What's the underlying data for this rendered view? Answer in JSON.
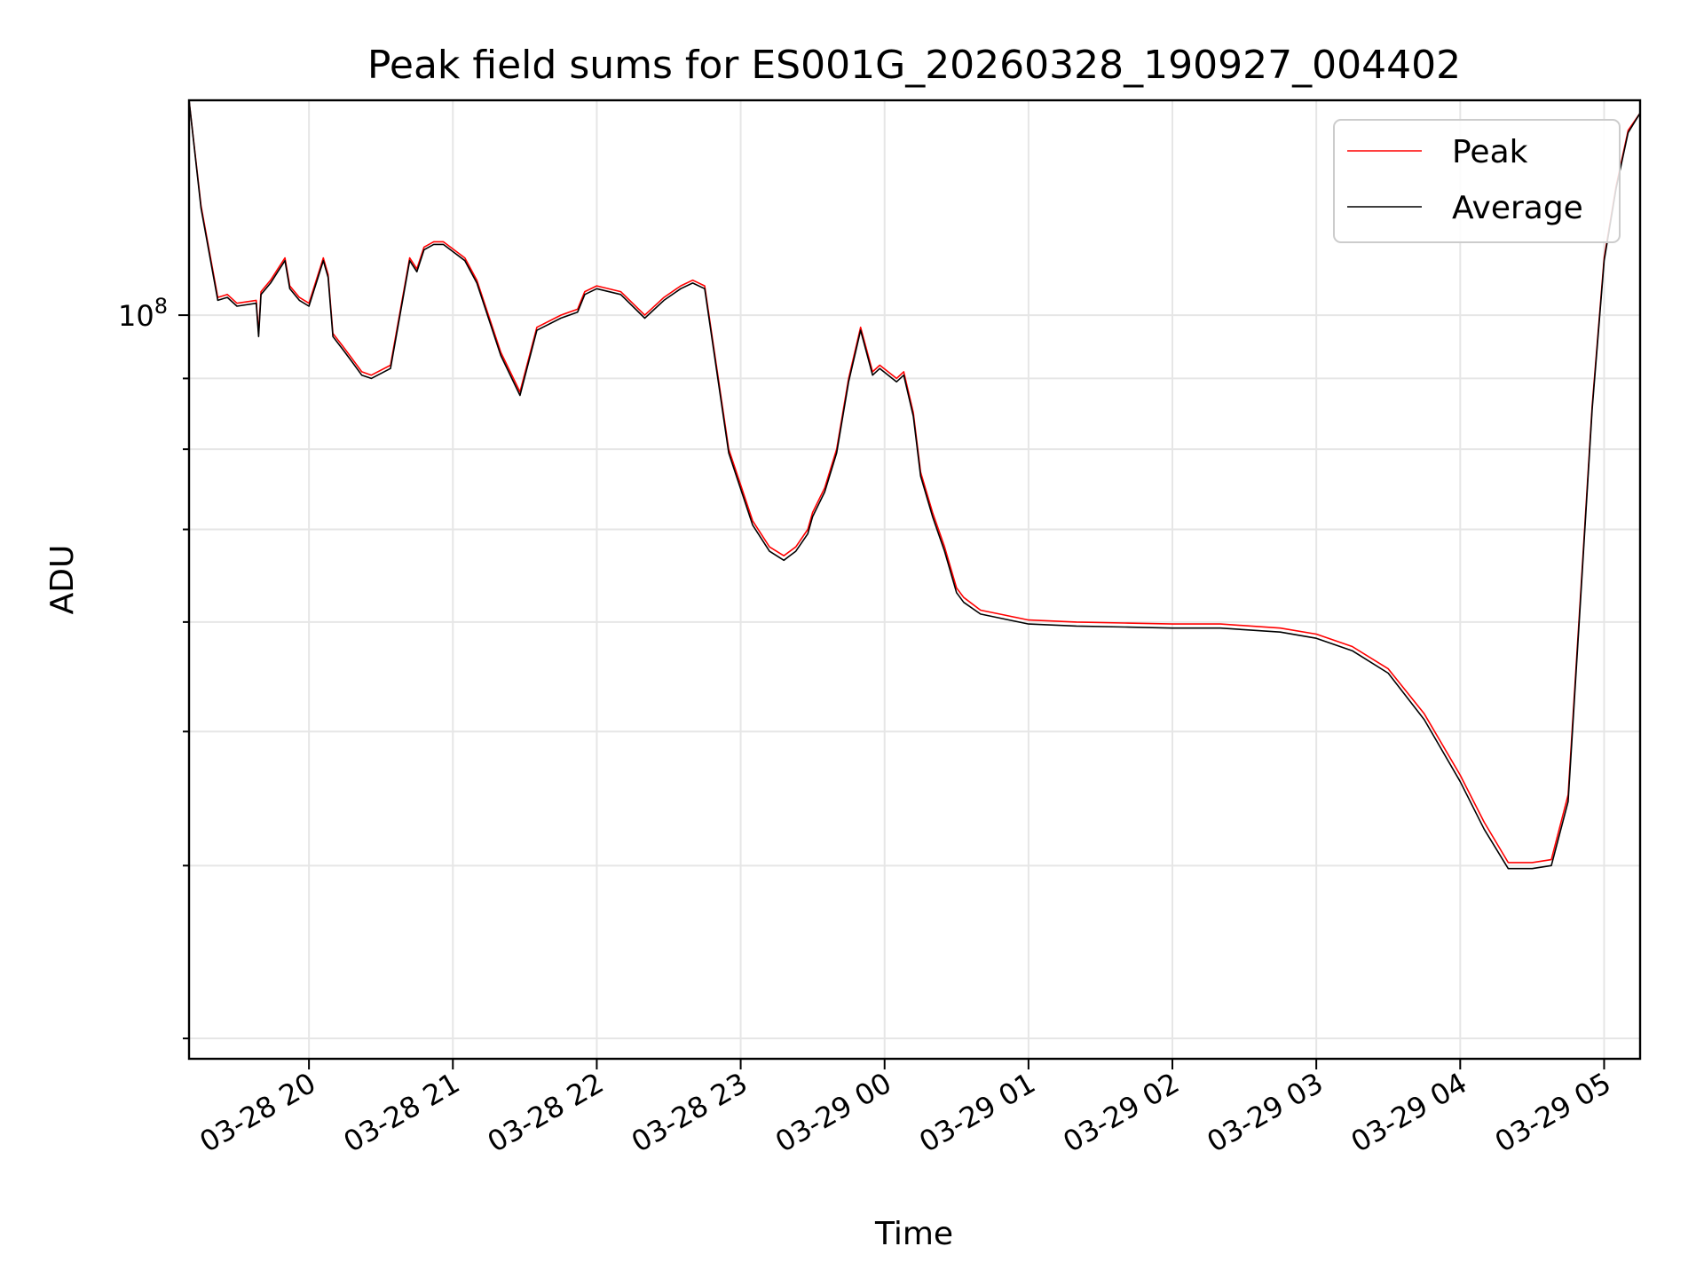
{
  "chart_data": {
    "type": "line",
    "title": "Peak field sums for ES001G_20260328_190927_004402",
    "xlabel": "Time",
    "ylabel": "ADU",
    "x_ticks": [
      "03-28 20",
      "03-28 21",
      "03-28 22",
      "03-28 23",
      "03-29 00",
      "03-29 01",
      "03-29 02",
      "03-29 03",
      "03-29 04",
      "03-29 05"
    ],
    "y_tick_major_label": "10^8",
    "y_scale": "log",
    "x_range": [
      "2026-03-28T19:10",
      "2026-03-29T05:15"
    ],
    "ylim": [
      29000000,
      143000000
    ],
    "grid": true,
    "legend_position": "top-right",
    "series": [
      {
        "name": "Peak",
        "color": "#ff0000",
        "x": [
          "2026-03-28T19:10",
          "2026-03-28T19:15",
          "2026-03-28T19:22",
          "2026-03-28T19:26",
          "2026-03-28T19:30",
          "2026-03-28T19:38",
          "2026-03-28T19:39",
          "2026-03-28T19:40",
          "2026-03-28T19:44",
          "2026-03-28T19:47",
          "2026-03-28T19:50",
          "2026-03-28T19:52",
          "2026-03-28T19:56",
          "2026-03-28T20:00",
          "2026-03-28T20:06",
          "2026-03-28T20:08",
          "2026-03-28T20:10",
          "2026-03-28T20:14",
          "2026-03-28T20:18",
          "2026-03-28T20:22",
          "2026-03-28T20:26",
          "2026-03-28T20:34",
          "2026-03-28T20:42",
          "2026-03-28T20:45",
          "2026-03-28T20:48",
          "2026-03-28T20:52",
          "2026-03-28T20:56",
          "2026-03-28T21:05",
          "2026-03-28T21:10",
          "2026-03-28T21:20",
          "2026-03-28T21:28",
          "2026-03-28T21:35",
          "2026-03-28T21:45",
          "2026-03-28T21:52",
          "2026-03-28T21:55",
          "2026-03-28T22:00",
          "2026-03-28T22:10",
          "2026-03-28T22:20",
          "2026-03-28T22:28",
          "2026-03-28T22:35",
          "2026-03-28T22:40",
          "2026-03-28T22:45",
          "2026-03-28T22:55",
          "2026-03-28T23:05",
          "2026-03-28T23:12",
          "2026-03-28T23:18",
          "2026-03-28T23:23",
          "2026-03-28T23:28",
          "2026-03-28T23:30",
          "2026-03-28T23:35",
          "2026-03-28T23:40",
          "2026-03-28T23:45",
          "2026-03-28T23:50",
          "2026-03-28T23:55",
          "2026-03-28T23:58",
          "2026-03-29T00:05",
          "2026-03-29T00:08",
          "2026-03-29T00:12",
          "2026-03-29T00:15",
          "2026-03-29T00:20",
          "2026-03-29T00:25",
          "2026-03-29T00:30",
          "2026-03-29T00:33",
          "2026-03-29T00:40",
          "2026-03-29T00:50",
          "2026-03-29T01:00",
          "2026-03-29T01:20",
          "2026-03-29T01:40",
          "2026-03-29T02:00",
          "2026-03-29T02:20",
          "2026-03-29T02:45",
          "2026-03-29T03:00",
          "2026-03-29T03:15",
          "2026-03-29T03:30",
          "2026-03-29T03:45",
          "2026-03-29T04:00",
          "2026-03-29T04:10",
          "2026-03-29T04:20",
          "2026-03-29T04:30",
          "2026-03-29T04:38",
          "2026-03-29T04:45",
          "2026-03-29T04:50",
          "2026-03-29T04:55",
          "2026-03-29T05:00",
          "2026-03-29T05:05",
          "2026-03-29T05:10",
          "2026-03-29T05:15"
        ],
        "y": [
          143000000,
          120000000,
          103000000,
          103500000,
          102000000,
          102500000,
          97000000,
          104000000,
          106000000,
          108000000,
          110000000,
          105000000,
          103000000,
          102000000,
          110000000,
          107000000,
          97000000,
          95000000,
          93000000,
          91000000,
          90500000,
          92000000,
          110000000,
          108000000,
          112000000,
          113000000,
          113000000,
          110000000,
          106000000,
          94000000,
          88000000,
          98000000,
          100000000,
          101000000,
          104000000,
          105000000,
          104000000,
          100000000,
          103000000,
          105000000,
          106000000,
          105000000,
          80000000,
          71000000,
          68000000,
          67000000,
          68000000,
          70000000,
          72000000,
          75000000,
          80000000,
          90000000,
          98000000,
          91000000,
          92000000,
          90000000,
          91000000,
          85000000,
          77000000,
          72000000,
          68000000,
          63500000,
          62500000,
          61200000,
          60700000,
          60200000,
          60000000,
          59900000,
          59800000,
          59800000,
          59400000,
          58800000,
          57600000,
          55500000,
          51500000,
          46500000,
          43000000,
          40200000,
          40200000,
          40400000,
          45000000,
          62000000,
          86000000,
          110000000,
          124000000,
          136000000,
          140000000
        ]
      },
      {
        "name": "Average",
        "color": "#000000",
        "x": [
          "2026-03-28T19:10",
          "2026-03-28T19:15",
          "2026-03-28T19:22",
          "2026-03-28T19:26",
          "2026-03-28T19:30",
          "2026-03-28T19:38",
          "2026-03-28T19:39",
          "2026-03-28T19:40",
          "2026-03-28T19:44",
          "2026-03-28T19:47",
          "2026-03-28T19:50",
          "2026-03-28T19:52",
          "2026-03-28T19:56",
          "2026-03-28T20:00",
          "2026-03-28T20:06",
          "2026-03-28T20:08",
          "2026-03-28T20:10",
          "2026-03-28T20:14",
          "2026-03-28T20:18",
          "2026-03-28T20:22",
          "2026-03-28T20:26",
          "2026-03-28T20:34",
          "2026-03-28T20:42",
          "2026-03-28T20:45",
          "2026-03-28T20:48",
          "2026-03-28T20:52",
          "2026-03-28T20:56",
          "2026-03-28T21:05",
          "2026-03-28T21:10",
          "2026-03-28T21:20",
          "2026-03-28T21:28",
          "2026-03-28T21:35",
          "2026-03-28T21:45",
          "2026-03-28T21:52",
          "2026-03-28T21:55",
          "2026-03-28T22:00",
          "2026-03-28T22:10",
          "2026-03-28T22:20",
          "2026-03-28T22:28",
          "2026-03-28T22:35",
          "2026-03-28T22:40",
          "2026-03-28T22:45",
          "2026-03-28T22:55",
          "2026-03-28T23:05",
          "2026-03-28T23:12",
          "2026-03-28T23:18",
          "2026-03-28T23:23",
          "2026-03-28T23:28",
          "2026-03-28T23:30",
          "2026-03-28T23:35",
          "2026-03-28T23:40",
          "2026-03-28T23:45",
          "2026-03-28T23:50",
          "2026-03-28T23:55",
          "2026-03-28T23:58",
          "2026-03-29T00:05",
          "2026-03-29T00:08",
          "2026-03-29T00:12",
          "2026-03-29T00:15",
          "2026-03-29T00:20",
          "2026-03-29T00:25",
          "2026-03-29T00:30",
          "2026-03-29T00:33",
          "2026-03-29T00:40",
          "2026-03-29T00:50",
          "2026-03-29T01:00",
          "2026-03-29T01:20",
          "2026-03-29T01:40",
          "2026-03-29T02:00",
          "2026-03-29T02:20",
          "2026-03-29T02:45",
          "2026-03-29T03:00",
          "2026-03-29T03:15",
          "2026-03-29T03:30",
          "2026-03-29T03:45",
          "2026-03-29T04:00",
          "2026-03-29T04:10",
          "2026-03-29T04:20",
          "2026-03-29T04:30",
          "2026-03-29T04:38",
          "2026-03-29T04:45",
          "2026-03-29T04:50",
          "2026-03-29T04:55",
          "2026-03-29T05:00",
          "2026-03-29T05:05",
          "2026-03-29T05:10",
          "2026-03-29T05:15"
        ],
        "y": [
          143000000,
          119500000,
          102500000,
          103000000,
          101500000,
          102000000,
          96500000,
          103500000,
          105500000,
          107500000,
          109500000,
          104500000,
          102500000,
          101500000,
          109500000,
          106500000,
          96500000,
          94500000,
          92500000,
          90500000,
          90000000,
          91500000,
          109500000,
          107500000,
          111500000,
          112500000,
          112500000,
          109500000,
          105500000,
          93500000,
          87500000,
          97500000,
          99500000,
          100500000,
          103500000,
          104500000,
          103500000,
          99500000,
          102500000,
          104500000,
          105500000,
          104500000,
          79500000,
          70500000,
          67500000,
          66500000,
          67500000,
          69500000,
          71500000,
          74500000,
          79500000,
          89500000,
          97500000,
          90500000,
          91500000,
          89500000,
          90500000,
          84500000,
          76500000,
          71500000,
          67500000,
          63000000,
          62000000,
          60800000,
          60300000,
          59800000,
          59600000,
          59500000,
          59400000,
          59400000,
          59000000,
          58400000,
          57200000,
          55100000,
          51000000,
          46000000,
          42500000,
          39800000,
          39800000,
          40000000,
          44500000,
          61500000,
          85500000,
          109500000,
          123500000,
          135500000,
          140000000
        ]
      }
    ]
  }
}
